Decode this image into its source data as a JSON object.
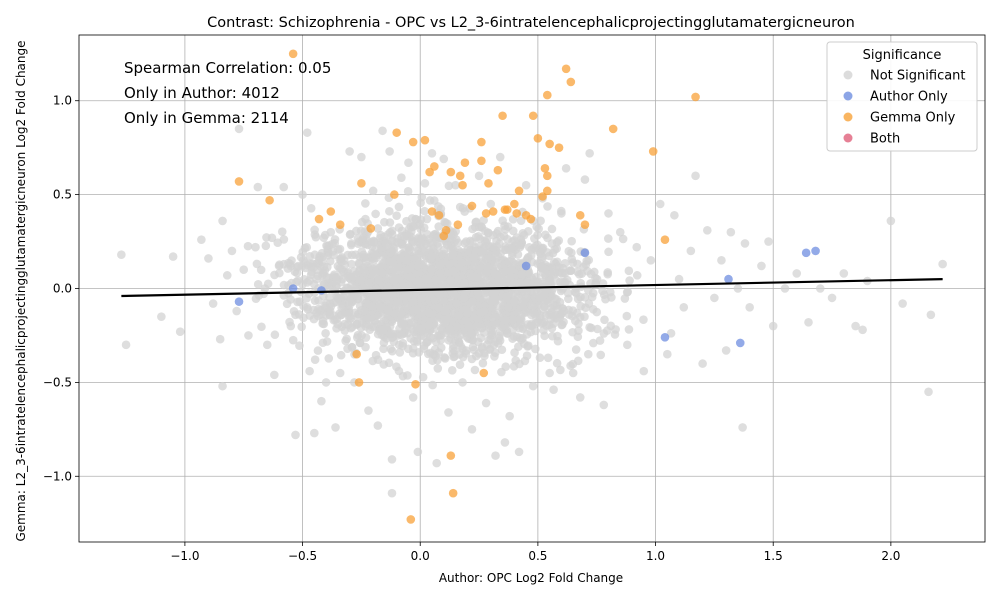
{
  "chart_data": {
    "type": "scatter",
    "title": "Contrast: Schizophrenia - OPC vs L2_3-6intratelencephalicprojectingglutamatergicneuron",
    "xlabel": "Author: OPC Log2 Fold Change",
    "ylabel": "Gemma: L2_3-6intratelencephalicprojectingglutamatergicneuron Log2 Fold Change",
    "xlim": [
      -1.45,
      2.4
    ],
    "ylim": [
      -1.35,
      1.35
    ],
    "x_ticks": [
      -1.0,
      -0.5,
      0.0,
      0.5,
      1.0,
      1.5,
      2.0
    ],
    "x_tick_labels": [
      "−1.0",
      "−0.5",
      "0.0",
      "0.5",
      "1.0",
      "1.5",
      "2.0"
    ],
    "y_ticks": [
      -1.0,
      -0.5,
      0.0,
      0.5,
      1.0
    ],
    "y_tick_labels": [
      "−1.0",
      "−0.5",
      "0.0",
      "0.5",
      "1.0"
    ],
    "grid": true,
    "legend_placement": "top-right",
    "annotations": [
      "Spearman Correlation: 0.05",
      "Only in Author: 4012",
      "Only in Gemma: 2114"
    ],
    "legend": {
      "title": "Significance",
      "entries": [
        {
          "label": "Not Significant",
          "color": "#d3d3d3"
        },
        {
          "label": "Author Only",
          "color": "#6f8ee0"
        },
        {
          "label": "Gemma Only",
          "color": "#f8a23a"
        },
        {
          "label": "Both",
          "color": "#e0607a"
        }
      ]
    },
    "regression_line": {
      "x": [
        -1.27,
        2.22
      ],
      "y": [
        -0.04,
        0.05
      ],
      "color": "#000000"
    },
    "series": [
      {
        "name": "Not Significant",
        "color": "#d3d3d3",
        "points": [
          [
            -1.27,
            0.18
          ],
          [
            -1.25,
            -0.3
          ],
          [
            -1.1,
            -0.15
          ],
          [
            -1.05,
            0.17
          ],
          [
            -1.02,
            -0.23
          ],
          [
            -0.93,
            0.26
          ],
          [
            -0.9,
            0.16
          ],
          [
            -0.88,
            -0.08
          ],
          [
            -0.85,
            -0.27
          ],
          [
            -0.84,
            0.36
          ],
          [
            -0.84,
            -0.52
          ],
          [
            -0.82,
            0.07
          ],
          [
            -0.8,
            0.2
          ],
          [
            -0.78,
            -0.12
          ],
          [
            -0.77,
            0.85
          ],
          [
            -0.75,
            0.1
          ],
          [
            -0.73,
            -0.25
          ],
          [
            -0.7,
            0.22
          ],
          [
            -0.69,
            0.54
          ],
          [
            -0.66,
            0.0
          ],
          [
            -0.65,
            -0.3
          ],
          [
            -0.63,
            0.27
          ],
          [
            -0.62,
            -0.46
          ],
          [
            -0.6,
            0.12
          ],
          [
            -0.58,
            0.54
          ],
          [
            -0.55,
            -0.2
          ],
          [
            -0.53,
            -0.78
          ],
          [
            -0.5,
            0.5
          ],
          [
            -0.48,
            0.83
          ],
          [
            -0.47,
            -0.44
          ],
          [
            -0.45,
            -0.77
          ],
          [
            -0.43,
            0.15
          ],
          [
            -0.42,
            -0.6
          ],
          [
            -0.4,
            -0.5
          ],
          [
            -0.38,
            0.3
          ],
          [
            -0.36,
            -0.74
          ],
          [
            -0.34,
            -0.45
          ],
          [
            -0.3,
            0.73
          ],
          [
            -0.28,
            -0.5
          ],
          [
            -0.25,
            0.7
          ],
          [
            -0.22,
            -0.65
          ],
          [
            -0.2,
            0.52
          ],
          [
            -0.18,
            -0.73
          ],
          [
            -0.16,
            0.84
          ],
          [
            -0.13,
            0.73
          ],
          [
            -0.12,
            -0.91
          ],
          [
            -0.12,
            -1.09
          ],
          [
            -0.08,
            0.59
          ],
          [
            -0.05,
            0.67
          ],
          [
            -0.03,
            -0.58
          ],
          [
            -0.01,
            -0.87
          ],
          [
            0.02,
            0.56
          ],
          [
            0.05,
            0.72
          ],
          [
            0.07,
            -0.93
          ],
          [
            0.1,
            0.69
          ],
          [
            0.12,
            -0.66
          ],
          [
            0.15,
            0.55
          ],
          [
            0.18,
            -0.5
          ],
          [
            0.22,
            -0.75
          ],
          [
            0.25,
            0.6
          ],
          [
            0.28,
            -0.61
          ],
          [
            0.32,
            -0.89
          ],
          [
            0.34,
            0.7
          ],
          [
            0.36,
            -0.82
          ],
          [
            0.38,
            -0.68
          ],
          [
            0.42,
            -0.87
          ],
          [
            0.45,
            0.55
          ],
          [
            0.48,
            -0.52
          ],
          [
            0.52,
            0.48
          ],
          [
            0.55,
            -0.45
          ],
          [
            0.6,
            0.4
          ],
          [
            0.62,
            0.64
          ],
          [
            0.65,
            -0.45
          ],
          [
            0.68,
            -0.58
          ],
          [
            0.7,
            0.58
          ],
          [
            0.72,
            0.72
          ],
          [
            0.78,
            -0.62
          ],
          [
            0.8,
            0.4
          ],
          [
            0.85,
            0.3
          ],
          [
            0.88,
            -0.3
          ],
          [
            0.92,
            0.22
          ],
          [
            0.95,
            -0.44
          ],
          [
            0.98,
            0.15
          ],
          [
            1.02,
            0.45
          ],
          [
            1.05,
            -0.35
          ],
          [
            1.08,
            0.39
          ],
          [
            1.1,
            0.05
          ],
          [
            1.12,
            -0.1
          ],
          [
            1.15,
            0.2
          ],
          [
            1.17,
            0.6
          ],
          [
            1.2,
            -0.4
          ],
          [
            1.22,
            0.31
          ],
          [
            1.25,
            -0.05
          ],
          [
            1.28,
            0.15
          ],
          [
            1.3,
            -0.33
          ],
          [
            1.32,
            0.3
          ],
          [
            1.35,
            0.0
          ],
          [
            1.37,
            -0.74
          ],
          [
            1.38,
            0.24
          ],
          [
            1.4,
            -0.1
          ],
          [
            1.45,
            0.12
          ],
          [
            1.48,
            0.25
          ],
          [
            1.5,
            -0.2
          ],
          [
            1.55,
            0.0
          ],
          [
            1.6,
            0.08
          ],
          [
            1.65,
            -0.18
          ],
          [
            1.7,
            0.0
          ],
          [
            1.75,
            -0.05
          ],
          [
            1.8,
            0.08
          ],
          [
            1.85,
            -0.2
          ],
          [
            1.88,
            -0.22
          ],
          [
            1.9,
            0.04
          ],
          [
            2.0,
            0.36
          ],
          [
            2.05,
            -0.08
          ],
          [
            2.16,
            -0.55
          ],
          [
            2.17,
            -0.14
          ],
          [
            2.22,
            0.13
          ]
        ]
      },
      {
        "name": "Author Only",
        "color": "#6f8ee0",
        "points": [
          [
            -0.77,
            -0.07
          ],
          [
            -0.54,
            0.0
          ],
          [
            -0.42,
            -0.01
          ],
          [
            0.45,
            0.12
          ],
          [
            0.7,
            0.19
          ],
          [
            1.04,
            -0.26
          ],
          [
            1.31,
            0.05
          ],
          [
            1.36,
            -0.29
          ],
          [
            1.64,
            0.19
          ],
          [
            1.68,
            0.2
          ]
        ]
      },
      {
        "name": "Gemma Only",
        "color": "#f8a23a",
        "points": [
          [
            -0.54,
            1.25
          ],
          [
            -0.77,
            0.57
          ],
          [
            -0.64,
            0.47
          ],
          [
            -0.43,
            0.37
          ],
          [
            -0.38,
            0.41
          ],
          [
            -0.34,
            0.34
          ],
          [
            -0.27,
            -0.35
          ],
          [
            -0.26,
            -0.5
          ],
          [
            -0.25,
            0.56
          ],
          [
            -0.21,
            0.32
          ],
          [
            -0.11,
            0.5
          ],
          [
            -0.1,
            0.83
          ],
          [
            -0.03,
            0.78
          ],
          [
            -0.02,
            -0.51
          ],
          [
            -0.04,
            -1.23
          ],
          [
            0.02,
            0.79
          ],
          [
            0.04,
            0.62
          ],
          [
            0.05,
            0.41
          ],
          [
            0.06,
            0.65
          ],
          [
            0.08,
            0.39
          ],
          [
            0.1,
            0.28
          ],
          [
            0.11,
            0.31
          ],
          [
            0.13,
            0.62
          ],
          [
            0.13,
            -0.89
          ],
          [
            0.14,
            -1.09
          ],
          [
            0.16,
            0.34
          ],
          [
            0.17,
            0.6
          ],
          [
            0.18,
            0.55
          ],
          [
            0.19,
            0.67
          ],
          [
            0.22,
            0.44
          ],
          [
            0.26,
            0.78
          ],
          [
            0.26,
            0.68
          ],
          [
            0.27,
            -0.45
          ],
          [
            0.28,
            0.4
          ],
          [
            0.29,
            0.56
          ],
          [
            0.31,
            0.41
          ],
          [
            0.33,
            0.63
          ],
          [
            0.35,
            0.92
          ],
          [
            0.36,
            0.42
          ],
          [
            0.37,
            0.42
          ],
          [
            0.4,
            0.45
          ],
          [
            0.41,
            0.4
          ],
          [
            0.42,
            0.52
          ],
          [
            0.45,
            0.39
          ],
          [
            0.47,
            0.37
          ],
          [
            0.48,
            0.92
          ],
          [
            0.5,
            0.8
          ],
          [
            0.52,
            0.49
          ],
          [
            0.53,
            0.64
          ],
          [
            0.54,
            0.6
          ],
          [
            0.54,
            0.52
          ],
          [
            0.54,
            1.03
          ],
          [
            0.55,
            0.77
          ],
          [
            0.59,
            0.75
          ],
          [
            0.62,
            1.17
          ],
          [
            0.64,
            1.1
          ],
          [
            0.68,
            0.39
          ],
          [
            0.7,
            0.34
          ],
          [
            0.82,
            0.85
          ],
          [
            0.99,
            0.73
          ],
          [
            1.04,
            0.26
          ],
          [
            1.17,
            1.02
          ]
        ]
      },
      {
        "name": "Both",
        "color": "#e0607a",
        "points": []
      }
    ]
  }
}
